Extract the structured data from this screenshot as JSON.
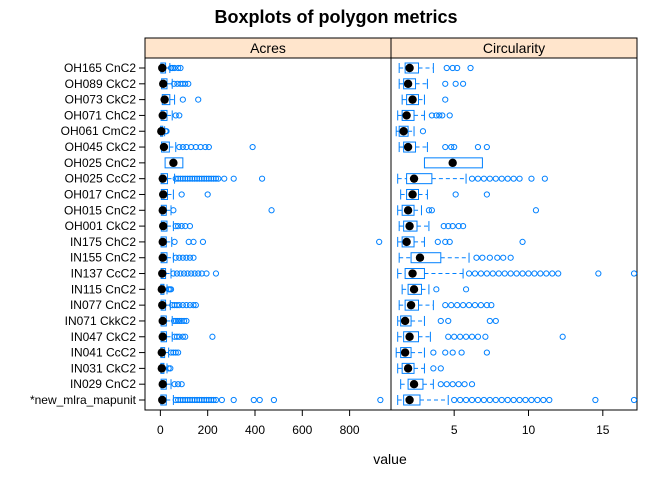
{
  "chart_data": {
    "type": "boxplot",
    "title": "Boxplots of polygon metrics",
    "xlabel": "value",
    "categories": [
      "OH165 CnC2",
      "OH089 CkC2",
      "OH073 CkC2",
      "OH071 ChC2",
      "OH061 CmC2",
      "OH045 CkC2",
      "OH025 CnC2",
      "OH025 CcC2",
      "OH017 CnC2",
      "OH015 CnC2",
      "OH001 CkC2",
      "IN175 ChC2",
      "IN155 CnC2",
      "IN137 CcC2",
      "IN115 CnC2",
      "IN077 CnC2",
      "IN071 CkkC2",
      "IN047 CkC2",
      "IN041 CcC2",
      "IN031 CkC2",
      "IN029 CnC2",
      "*new_mlra_mapunit"
    ],
    "colors": {
      "box": "#0080ff",
      "median": "#000000",
      "strip": "#ffe5cc",
      "frame": "#000000"
    },
    "panels": [
      {
        "name": "Acres",
        "xlim": [
          -65,
          975
        ],
        "ticks": [
          0,
          200,
          400,
          600,
          800
        ],
        "tick_labels": [
          "0",
          "200",
          "400",
          "600",
          "800"
        ],
        "stats": [
          {
            "q1": 2,
            "median": 8,
            "q3": 22,
            "whisker_hi": 40,
            "outliers": [
              45,
              52,
              60,
              75,
              85
            ]
          },
          {
            "q1": 5,
            "median": 12,
            "q3": 28,
            "whisker_hi": 50,
            "outliers": [
              58,
              72,
              85,
              95,
              105,
              118
            ]
          },
          {
            "q1": 8,
            "median": 18,
            "q3": 40,
            "whisker_hi": 60,
            "outliers": [
              95,
              160
            ]
          },
          {
            "q1": 3,
            "median": 10,
            "q3": 28,
            "whisker_hi": 50,
            "outliers": [
              65,
              80
            ]
          },
          {
            "q1": 1,
            "median": 4,
            "q3": 10,
            "whisker_hi": 18,
            "outliers": [
              22,
              26
            ]
          },
          {
            "q1": 5,
            "median": 15,
            "q3": 38,
            "whisker_hi": 65,
            "outliers": [
              80,
              95,
              110,
              130,
              150,
              170,
              190,
              205,
              390
            ]
          },
          {
            "q1": 20,
            "median": 55,
            "q3": 95,
            "whisker_hi": 95,
            "outliers": []
          },
          {
            "q1": 3,
            "median": 10,
            "q3": 30,
            "whisker_hi": 60,
            "outliers": [
              65,
              75,
              85,
              95,
              105,
              115,
              125,
              135,
              145,
              155,
              165,
              175,
              185,
              195,
              205,
              215,
              225,
              235,
              245,
              270,
              310,
              430
            ]
          },
          {
            "q1": 4,
            "median": 12,
            "q3": 30,
            "whisker_hi": 55,
            "outliers": [
              90,
              200
            ]
          },
          {
            "q1": 4,
            "median": 10,
            "q3": 25,
            "whisker_hi": 45,
            "outliers": [
              55,
              470
            ]
          },
          {
            "q1": 4,
            "median": 12,
            "q3": 28,
            "whisker_hi": 55,
            "outliers": [
              65,
              75,
              90,
              105,
              125
            ]
          },
          {
            "q1": 3,
            "median": 10,
            "q3": 25,
            "whisker_hi": 48,
            "outliers": [
              60,
              120,
              140,
              180,
              925
            ]
          },
          {
            "q1": 3,
            "median": 10,
            "q3": 28,
            "whisker_hi": 55,
            "outliers": [
              65,
              80,
              95,
              110,
              125,
              140
            ]
          },
          {
            "q1": 3,
            "median": 8,
            "q3": 22,
            "whisker_hi": 45,
            "outliers": [
              55,
              70,
              85,
              100,
              115,
              130,
              145,
              160,
              175,
              195,
              235
            ]
          },
          {
            "q1": 2,
            "median": 6,
            "q3": 15,
            "whisker_hi": 28,
            "outliers": [
              35,
              40,
              45
            ]
          },
          {
            "q1": 3,
            "median": 8,
            "q3": 22,
            "whisker_hi": 42,
            "outliers": [
              50,
              60,
              70,
              80,
              95,
              110,
              125,
              140,
              150
            ]
          },
          {
            "q1": 3,
            "median": 10,
            "q3": 25,
            "whisker_hi": 50,
            "outliers": [
              58,
              66,
              74,
              82,
              90,
              100,
              110
            ]
          },
          {
            "q1": 3,
            "median": 10,
            "q3": 26,
            "whisker_hi": 50,
            "outliers": [
              60,
              70,
              80,
              95,
              105,
              220
            ]
          },
          {
            "q1": 2,
            "median": 6,
            "q3": 18,
            "whisker_hi": 35,
            "outliers": [
              45,
              55,
              65,
              75
            ]
          },
          {
            "q1": 2,
            "median": 6,
            "q3": 15,
            "whisker_hi": 28,
            "outliers": [
              35,
              42
            ]
          },
          {
            "q1": 3,
            "median": 10,
            "q3": 25,
            "whisker_hi": 45,
            "outliers": [
              60,
              75,
              90
            ]
          },
          {
            "q1": 2,
            "median": 8,
            "q3": 25,
            "whisker_hi": 55,
            "outliers": [
              65,
              75,
              85,
              95,
              105,
              115,
              125,
              135,
              145,
              155,
              165,
              175,
              185,
              195,
              205,
              215,
              225,
              235,
              260,
              310,
              395,
              420,
              480,
              930
            ]
          }
        ]
      },
      {
        "name": "Circularity",
        "xlim": [
          0.75,
          17.3
        ],
        "ticks": [
          5,
          10,
          15
        ],
        "tick_labels": [
          "5",
          "10",
          "15"
        ],
        "stats": [
          {
            "q1": 1.7,
            "median": 2.0,
            "q3": 2.6,
            "whisker_lo": 1.3,
            "whisker_hi": 3.6,
            "outliers": [
              4.5,
              4.9,
              5.2,
              6.1
            ]
          },
          {
            "q1": 1.6,
            "median": 1.9,
            "q3": 2.4,
            "whisker_lo": 1.3,
            "whisker_hi": 3.2,
            "outliers": [
              4.4,
              5.1,
              5.6
            ]
          },
          {
            "q1": 1.8,
            "median": 2.2,
            "q3": 2.6,
            "whisker_lo": 1.5,
            "whisker_hi": 3.0,
            "outliers": [
              4.4
            ]
          },
          {
            "q1": 1.5,
            "median": 1.8,
            "q3": 2.3,
            "whisker_lo": 1.2,
            "whisker_hi": 3.0,
            "outliers": [
              3.5,
              3.8,
              4.0,
              4.2,
              4.7
            ]
          },
          {
            "q1": 1.3,
            "median": 1.6,
            "q3": 1.9,
            "whisker_lo": 1.1,
            "whisker_hi": 2.3,
            "outliers": [
              2.9
            ]
          },
          {
            "q1": 1.6,
            "median": 1.9,
            "q3": 2.4,
            "whisker_lo": 1.3,
            "whisker_hi": 3.2,
            "outliers": [
              4.4,
              4.8,
              5.0,
              6.6,
              7.2
            ]
          },
          {
            "q1": 3.0,
            "median": 4.9,
            "q3": 6.9,
            "whisker_lo": 3.0,
            "whisker_hi": 6.9,
            "outliers": []
          },
          {
            "q1": 1.8,
            "median": 2.3,
            "q3": 3.5,
            "whisker_lo": 1.2,
            "whisker_hi": 5.8,
            "outliers": [
              6.2,
              6.6,
              7.0,
              7.4,
              7.8,
              8.2,
              8.6,
              9.0,
              9.4,
              10.2,
              11.1
            ]
          },
          {
            "q1": 1.8,
            "median": 2.2,
            "q3": 2.6,
            "whisker_lo": 1.4,
            "whisker_hi": 3.2,
            "outliers": [
              5.1,
              7.2
            ]
          },
          {
            "q1": 1.5,
            "median": 1.9,
            "q3": 2.3,
            "whisker_lo": 1.2,
            "whisker_hi": 2.8,
            "outliers": [
              3.3,
              3.5,
              10.5
            ]
          },
          {
            "q1": 1.6,
            "median": 2.0,
            "q3": 2.5,
            "whisker_lo": 1.3,
            "whisker_hi": 3.3,
            "outliers": [
              4.3,
              4.6,
              4.9,
              5.3,
              5.6
            ]
          },
          {
            "q1": 1.5,
            "median": 1.8,
            "q3": 2.3,
            "whisker_lo": 1.2,
            "whisker_hi": 3.0,
            "outliers": [
              3.9,
              4.4,
              4.7,
              9.6
            ]
          },
          {
            "q1": 2.1,
            "median": 2.7,
            "q3": 4.1,
            "whisker_lo": 1.3,
            "whisker_hi": 6.0,
            "outliers": [
              6.5,
              6.9,
              7.4,
              7.9,
              8.3,
              8.8
            ]
          },
          {
            "q1": 1.7,
            "median": 2.2,
            "q3": 3.0,
            "whisker_lo": 1.2,
            "whisker_hi": 5.6,
            "outliers": [
              6.0,
              6.4,
              6.8,
              7.2,
              7.6,
              8.0,
              8.4,
              8.8,
              9.2,
              9.6,
              10.0,
              10.4,
              10.8,
              11.2,
              11.6,
              12.0,
              14.7,
              17.1
            ]
          },
          {
            "q1": 1.9,
            "median": 2.3,
            "q3": 2.8,
            "whisker_lo": 1.5,
            "whisker_hi": 3.3,
            "outliers": [
              3.8,
              5.8
            ]
          },
          {
            "q1": 1.7,
            "median": 2.1,
            "q3": 2.6,
            "whisker_lo": 1.3,
            "whisker_hi": 3.6,
            "outliers": [
              4.4,
              4.8,
              5.2,
              5.6,
              6.0,
              6.4,
              6.8,
              7.2,
              7.5
            ]
          },
          {
            "q1": 1.4,
            "median": 1.7,
            "q3": 2.1,
            "whisker_lo": 1.2,
            "whisker_hi": 3.0,
            "outliers": [
              4.1,
              4.6,
              7.4,
              7.8
            ]
          },
          {
            "q1": 1.6,
            "median": 2.0,
            "q3": 2.6,
            "whisker_lo": 1.2,
            "whisker_hi": 3.4,
            "outliers": [
              4.6,
              5.0,
              5.4,
              5.8,
              6.2,
              6.6,
              7.1,
              12.3
            ]
          },
          {
            "q1": 1.4,
            "median": 1.7,
            "q3": 2.1,
            "whisker_lo": 1.1,
            "whisker_hi": 3.0,
            "outliers": [
              3.6,
              4.4,
              4.9,
              5.5,
              7.2
            ]
          },
          {
            "q1": 1.5,
            "median": 1.9,
            "q3": 2.3,
            "whisker_lo": 1.2,
            "whisker_hi": 3.0,
            "outliers": [
              3.6,
              4.1
            ]
          },
          {
            "q1": 1.9,
            "median": 2.3,
            "q3": 2.9,
            "whisker_lo": 1.4,
            "whisker_hi": 3.6,
            "outliers": [
              4.1,
              4.5,
              4.9,
              5.3,
              5.7,
              6.2
            ]
          },
          {
            "q1": 1.6,
            "median": 2.0,
            "q3": 2.7,
            "whisker_lo": 1.2,
            "whisker_hi": 4.6,
            "outliers": [
              5.0,
              5.4,
              5.8,
              6.2,
              6.6,
              7.0,
              7.4,
              7.8,
              8.2,
              8.6,
              9.0,
              9.4,
              9.8,
              10.2,
              10.6,
              11.0,
              11.4,
              14.5,
              17.1
            ]
          }
        ]
      }
    ]
  }
}
